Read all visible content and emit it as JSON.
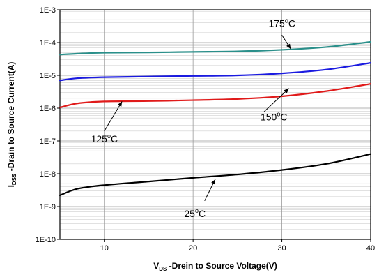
{
  "chart_data": {
    "type": "line",
    "xlabel_main": "V",
    "xlabel_sub": "DS",
    "xlabel_rest": " -Drein to Source Voltage(V)",
    "ylabel_main": "I",
    "ylabel_sub": "DSS",
    "ylabel_rest": " -Drain to Source Current(A)",
    "xlim": [
      5,
      40
    ],
    "ylim": [
      1e-10,
      0.001
    ],
    "y_scale": "log",
    "grid": true,
    "x_ticks": [
      10,
      20,
      30,
      40
    ],
    "x_tick_labels": [
      "10",
      "20",
      "30",
      "40"
    ],
    "y_ticks": [
      1e-10,
      1e-09,
      1e-08,
      1e-07,
      1e-06,
      1e-05,
      0.0001,
      0.001
    ],
    "y_tick_labels": [
      "1E-10",
      "1E-9",
      "1E-8",
      "1E-7",
      "1E-6",
      "1E-5",
      "1E-4",
      "1E-3"
    ],
    "series": [
      {
        "name": "175°C",
        "color": "#2a8f8a",
        "x": [
          5,
          7,
          10,
          15,
          20,
          25,
          30,
          35,
          40
        ],
        "y": [
          4.3e-05,
          4.6e-05,
          4.9e-05,
          5e-05,
          5.2e-05,
          5.4e-05,
          6e-05,
          7.3e-05,
          0.000105
        ]
      },
      {
        "name": "150°C",
        "color": "#1a1ae0",
        "x": [
          5,
          7,
          10,
          15,
          20,
          25,
          30,
          35,
          40
        ],
        "y": [
          7e-06,
          8.2e-06,
          8.8e-06,
          9.2e-06,
          9.6e-06,
          1e-05,
          1.15e-05,
          1.5e-05,
          2.4e-05
        ]
      },
      {
        "name": "125°C",
        "color": "#e01a1a",
        "x": [
          5,
          7,
          10,
          15,
          20,
          25,
          30,
          35,
          40
        ],
        "y": [
          1.05e-06,
          1.4e-06,
          1.6e-06,
          1.65e-06,
          1.75e-06,
          1.9e-06,
          2.3e-06,
          3.3e-06,
          5.5e-06
        ]
      },
      {
        "name": "25°C",
        "color": "#000000",
        "x": [
          5,
          7,
          10,
          15,
          20,
          25,
          30,
          35,
          40
        ],
        "y": [
          2.2e-09,
          3.5e-09,
          4.5e-09,
          5.8e-09,
          7.5e-09,
          9.5e-09,
          1.3e-08,
          2e-08,
          4e-08
        ]
      }
    ],
    "annotations": [
      {
        "base": "175",
        "deg": "o",
        "unit": "C",
        "x": 28.5,
        "y": 0.0003,
        "arrow_from": [
          30.0,
          0.00017
        ],
        "arrow_to": [
          31.0,
          6.4e-05
        ]
      },
      {
        "base": "150",
        "deg": "o",
        "unit": "C",
        "x": 27.6,
        "y": 4.2e-07,
        "arrow_from": [
          28.0,
          7.8e-07
        ],
        "arrow_to": [
          30.8,
          4e-06
        ]
      },
      {
        "base": "125",
        "deg": "o",
        "unit": "C",
        "x": 8.5,
        "y": 9e-08,
        "arrow_from": [
          10.0,
          2e-07
        ],
        "arrow_to": [
          12.0,
          1.6e-06
        ]
      },
      {
        "base": "25",
        "deg": "o",
        "unit": "C",
        "x": 19.0,
        "y": 4.8e-10,
        "arrow_from": [
          21.3,
          1.5e-09
        ],
        "arrow_to": [
          22.5,
          6.8e-09
        ]
      }
    ]
  }
}
